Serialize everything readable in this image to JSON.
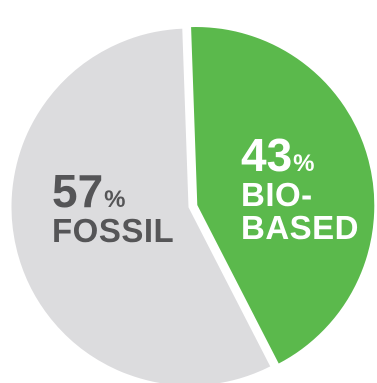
{
  "chart_data": {
    "type": "pie",
    "slices": [
      {
        "name": "FOSSIL",
        "name_lines": [
          "FOSSIL"
        ],
        "value": 57,
        "value_text": "57",
        "unit": "%",
        "color": "#dcdcde",
        "label_color": "#555557"
      },
      {
        "name": "BIO-BASED",
        "name_lines": [
          "BIO-",
          "BASED"
        ],
        "value": 43,
        "value_text": "43",
        "unit": "%",
        "color": "#5bb94c",
        "label_color": "#ffffff",
        "exploded": true
      }
    ]
  }
}
